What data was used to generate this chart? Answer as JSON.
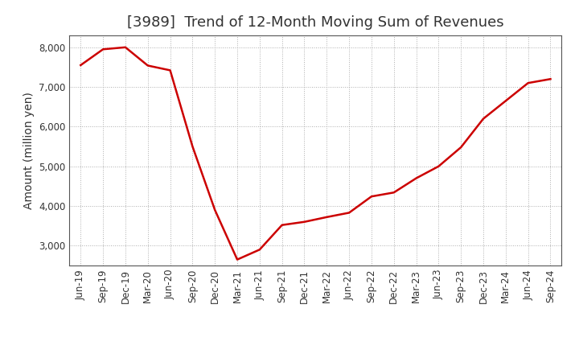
{
  "title": "[3989]  Trend of 12-Month Moving Sum of Revenues",
  "ylabel": "Amount (million yen)",
  "line_color": "#cc0000",
  "background_color": "#ffffff",
  "grid_color": "#999999",
  "x_labels": [
    "Jun-19",
    "Sep-19",
    "Dec-19",
    "Mar-20",
    "Jun-20",
    "Sep-20",
    "Dec-20",
    "Mar-21",
    "Jun-21",
    "Sep-21",
    "Dec-21",
    "Mar-22",
    "Jun-22",
    "Sep-22",
    "Dec-22",
    "Mar-23",
    "Jun-23",
    "Sep-23",
    "Dec-23",
    "Mar-24",
    "Jun-24",
    "Sep-24"
  ],
  "y_values": [
    7550,
    7950,
    8000,
    7540,
    7420,
    5500,
    3900,
    2650,
    2900,
    3520,
    3600,
    3720,
    3830,
    4240,
    4340,
    4700,
    5000,
    5480,
    6200,
    6650,
    7100,
    7200
  ],
  "ylim": [
    2500,
    8300
  ],
  "yticks": [
    3000,
    4000,
    5000,
    6000,
    7000,
    8000
  ],
  "title_fontsize": 13,
  "axis_fontsize": 10,
  "tick_fontsize": 8.5,
  "title_color": "#333333"
}
